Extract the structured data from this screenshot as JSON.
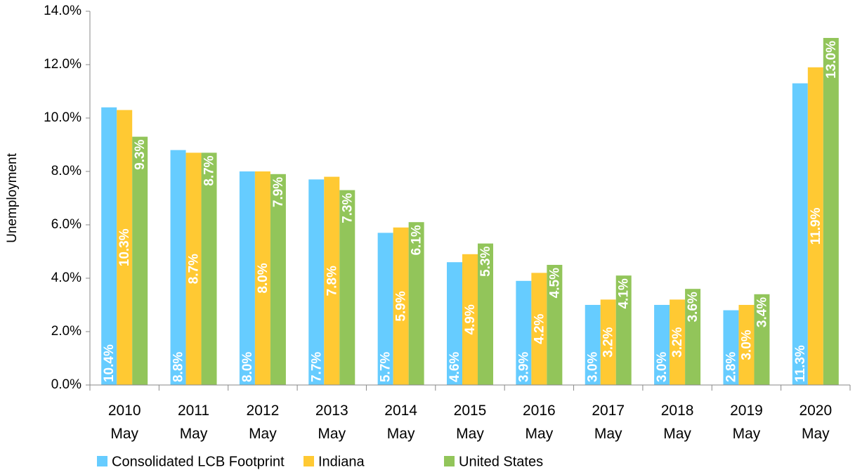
{
  "chart_data": {
    "type": "bar",
    "ylabel": "Unemployment",
    "categories": [
      "2010 May",
      "2011 May",
      "2012 May",
      "2013 May",
      "2014 May",
      "2015 May",
      "2016 May",
      "2017 May",
      "2018 May",
      "2019 May",
      "2020 May"
    ],
    "series": [
      {
        "name": "Consolidated LCB Footprint",
        "color": "#66ccff",
        "values": [
          10.4,
          8.8,
          8.0,
          7.7,
          5.7,
          4.6,
          3.9,
          3.0,
          3.0,
          2.8,
          11.3
        ],
        "value_labels": [
          "10.4%",
          "8.8%",
          "8.0%",
          "7.7%",
          "5.7%",
          "4.6%",
          "3.9%",
          "3.0%",
          "3.0%",
          "2.8%",
          "11.3%"
        ]
      },
      {
        "name": "Indiana",
        "color": "#ffc933",
        "values": [
          10.3,
          8.7,
          8.0,
          7.8,
          5.9,
          4.9,
          4.2,
          3.2,
          3.2,
          3.0,
          11.9
        ],
        "value_labels": [
          "10.3%",
          "8.7%",
          "8.0%",
          "7.8%",
          "5.9%",
          "4.9%",
          "4.2%",
          "3.2%",
          "3.2%",
          "3.0%",
          "11.9%"
        ]
      },
      {
        "name": "United States",
        "color": "#92c55a",
        "values": [
          9.3,
          8.7,
          7.9,
          7.3,
          6.1,
          5.3,
          4.5,
          4.1,
          3.6,
          3.4,
          13.0
        ],
        "value_labels": [
          "9.3%",
          "8.7%",
          "7.9%",
          "7.3%",
          "6.1%",
          "5.3%",
          "4.5%",
          "4.1%",
          "3.6%",
          "3.4%",
          "13.0%"
        ]
      }
    ],
    "ylim": [
      0,
      14
    ],
    "yticks": [
      {
        "value": 0,
        "label": "0.0%"
      },
      {
        "value": 2,
        "label": "2.0%"
      },
      {
        "value": 4,
        "label": "4.0%"
      },
      {
        "value": 6,
        "label": "6.0%"
      },
      {
        "value": 8,
        "label": "8.0%"
      },
      {
        "value": 10,
        "label": "10.0%"
      },
      {
        "value": 12,
        "label": "12.0%"
      },
      {
        "value": 14,
        "label": "14.0%"
      }
    ],
    "grid": false
  }
}
